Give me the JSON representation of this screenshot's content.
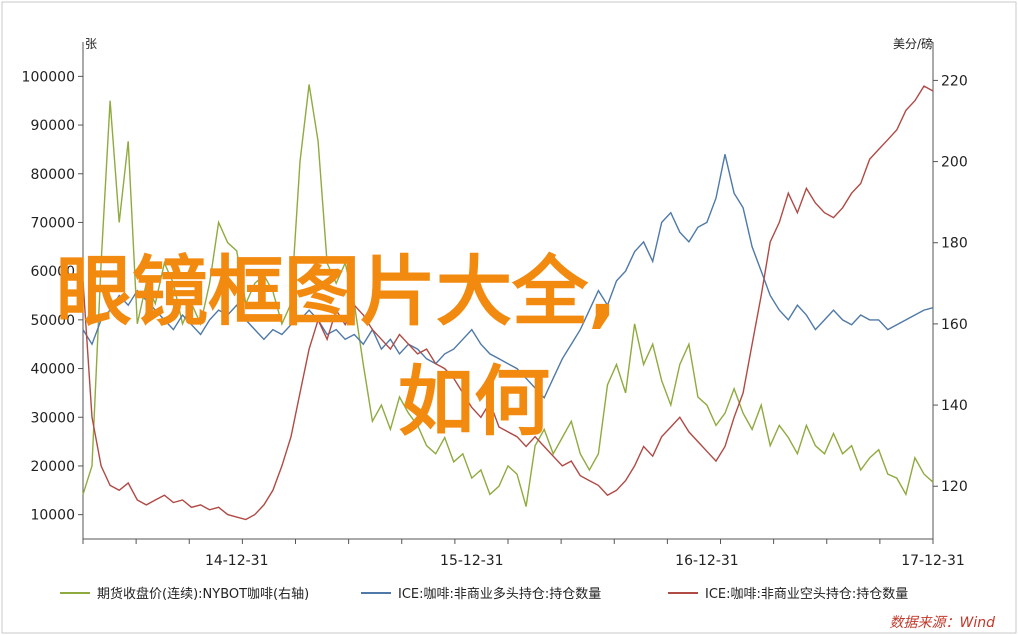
{
  "chart_data": {
    "type": "line",
    "left_axis": {
      "unit": "张",
      "ticks": [
        10000,
        20000,
        30000,
        40000,
        50000,
        60000,
        70000,
        80000,
        90000,
        100000
      ],
      "ylim": [
        5000,
        105000
      ]
    },
    "right_axis": {
      "unit": "美分/磅",
      "ticks": [
        120,
        140,
        160,
        180,
        200,
        220
      ],
      "ylim": [
        107,
        227
      ]
    },
    "x_ticks": [
      "14-12-31",
      "15-12-31",
      "16-12-31",
      "17-12-31"
    ],
    "series": [
      {
        "name": "期货收盘价(连续):NYBOT咖啡(右轴)",
        "axis": "right",
        "color": "#8faa3e",
        "points": [
          [
            0,
            118
          ],
          [
            1,
            125
          ],
          [
            2,
            175
          ],
          [
            3,
            215
          ],
          [
            4,
            185
          ],
          [
            5,
            205
          ],
          [
            6,
            160
          ],
          [
            7,
            170
          ],
          [
            8,
            165
          ],
          [
            9,
            175
          ],
          [
            10,
            170
          ],
          [
            11,
            160
          ],
          [
            12,
            165
          ],
          [
            13,
            160
          ],
          [
            14,
            170
          ],
          [
            15,
            185
          ],
          [
            16,
            180
          ],
          [
            17,
            178
          ],
          [
            18,
            165
          ],
          [
            19,
            170
          ],
          [
            20,
            172
          ],
          [
            21,
            168
          ],
          [
            22,
            160
          ],
          [
            23,
            165
          ],
          [
            24,
            200
          ],
          [
            25,
            219
          ],
          [
            26,
            205
          ],
          [
            27,
            175
          ],
          [
            28,
            170
          ],
          [
            29,
            175
          ],
          [
            30,
            165
          ],
          [
            31,
            150
          ],
          [
            32,
            136
          ],
          [
            33,
            140
          ],
          [
            34,
            134
          ],
          [
            35,
            142
          ],
          [
            36,
            138
          ],
          [
            37,
            135
          ],
          [
            38,
            130
          ],
          [
            39,
            128
          ],
          [
            40,
            132
          ],
          [
            41,
            126
          ],
          [
            42,
            128
          ],
          [
            43,
            122
          ],
          [
            44,
            124
          ],
          [
            45,
            118
          ],
          [
            46,
            120
          ],
          [
            47,
            125
          ],
          [
            48,
            123
          ],
          [
            49,
            115
          ],
          [
            50,
            130
          ],
          [
            51,
            134
          ],
          [
            52,
            128
          ],
          [
            53,
            132
          ],
          [
            54,
            136
          ],
          [
            55,
            128
          ],
          [
            56,
            124
          ],
          [
            57,
            128
          ],
          [
            58,
            145
          ],
          [
            59,
            150
          ],
          [
            60,
            143
          ],
          [
            61,
            160
          ],
          [
            62,
            150
          ],
          [
            63,
            155
          ],
          [
            64,
            146
          ],
          [
            65,
            140
          ],
          [
            66,
            150
          ],
          [
            67,
            155
          ],
          [
            68,
            142
          ],
          [
            69,
            140
          ],
          [
            70,
            135
          ],
          [
            71,
            138
          ],
          [
            72,
            144
          ],
          [
            73,
            138
          ],
          [
            74,
            134
          ],
          [
            75,
            140
          ],
          [
            76,
            130
          ],
          [
            77,
            135
          ],
          [
            78,
            132
          ],
          [
            79,
            128
          ],
          [
            80,
            135
          ],
          [
            81,
            130
          ],
          [
            82,
            128
          ],
          [
            83,
            133
          ],
          [
            84,
            128
          ],
          [
            85,
            130
          ],
          [
            86,
            124
          ],
          [
            87,
            127
          ],
          [
            88,
            129
          ],
          [
            89,
            123
          ],
          [
            90,
            122
          ],
          [
            91,
            118
          ],
          [
            92,
            127
          ],
          [
            93,
            123
          ],
          [
            94,
            121
          ]
        ]
      },
      {
        "name": "ICE:咖啡:非商业多头持仓:持仓数量",
        "axis": "left",
        "color": "#4f79a8",
        "points": [
          [
            0,
            48000
          ],
          [
            1,
            45000
          ],
          [
            2,
            50000
          ],
          [
            3,
            52000
          ],
          [
            4,
            55000
          ],
          [
            5,
            53000
          ],
          [
            6,
            56000
          ],
          [
            7,
            54000
          ],
          [
            8,
            52000
          ],
          [
            9,
            50000
          ],
          [
            10,
            48000
          ],
          [
            11,
            51000
          ],
          [
            12,
            49000
          ],
          [
            13,
            47000
          ],
          [
            14,
            50000
          ],
          [
            15,
            52000
          ],
          [
            16,
            51000
          ],
          [
            17,
            53000
          ],
          [
            18,
            50000
          ],
          [
            19,
            48000
          ],
          [
            20,
            46000
          ],
          [
            21,
            48000
          ],
          [
            22,
            47000
          ],
          [
            23,
            49000
          ],
          [
            24,
            50000
          ],
          [
            25,
            52000
          ],
          [
            26,
            50000
          ],
          [
            27,
            47000
          ],
          [
            28,
            48000
          ],
          [
            29,
            46000
          ],
          [
            30,
            47000
          ],
          [
            31,
            45000
          ],
          [
            32,
            48000
          ],
          [
            33,
            44000
          ],
          [
            34,
            46000
          ],
          [
            35,
            43000
          ],
          [
            36,
            45000
          ],
          [
            37,
            44000
          ],
          [
            38,
            42000
          ],
          [
            39,
            41000
          ],
          [
            40,
            43000
          ],
          [
            41,
            44000
          ],
          [
            42,
            46000
          ],
          [
            43,
            48000
          ],
          [
            44,
            45000
          ],
          [
            45,
            43000
          ],
          [
            46,
            42000
          ],
          [
            47,
            41000
          ],
          [
            48,
            40000
          ],
          [
            49,
            38000
          ],
          [
            50,
            36000
          ],
          [
            51,
            34000
          ],
          [
            52,
            38000
          ],
          [
            53,
            42000
          ],
          [
            54,
            45000
          ],
          [
            55,
            48000
          ],
          [
            56,
            52000
          ],
          [
            57,
            56000
          ],
          [
            58,
            53000
          ],
          [
            59,
            58000
          ],
          [
            60,
            60000
          ],
          [
            61,
            64000
          ],
          [
            62,
            66000
          ],
          [
            63,
            62000
          ],
          [
            64,
            70000
          ],
          [
            65,
            72000
          ],
          [
            66,
            68000
          ],
          [
            67,
            66000
          ],
          [
            68,
            69000
          ],
          [
            69,
            70000
          ],
          [
            70,
            75000
          ],
          [
            71,
            84000
          ],
          [
            72,
            76000
          ],
          [
            73,
            73000
          ],
          [
            74,
            65000
          ],
          [
            75,
            60000
          ],
          [
            76,
            55000
          ],
          [
            77,
            52000
          ],
          [
            78,
            50000
          ],
          [
            79,
            53000
          ],
          [
            80,
            51000
          ],
          [
            81,
            48000
          ],
          [
            82,
            50000
          ],
          [
            83,
            52000
          ],
          [
            84,
            50000
          ],
          [
            85,
            49000
          ],
          [
            86,
            51000
          ],
          [
            87,
            50000
          ],
          [
            88,
            50000
          ],
          [
            89,
            48000
          ],
          [
            90,
            49000
          ],
          [
            91,
            50000
          ],
          [
            92,
            51000
          ],
          [
            93,
            52000
          ],
          [
            94,
            52500
          ]
        ]
      },
      {
        "name": "ICE:咖啡:非商业空头持仓:持仓数量",
        "axis": "left",
        "color": "#b04a45",
        "points": [
          [
            0,
            58000
          ],
          [
            1,
            30000
          ],
          [
            2,
            20000
          ],
          [
            3,
            16000
          ],
          [
            4,
            15000
          ],
          [
            5,
            16500
          ],
          [
            6,
            13000
          ],
          [
            7,
            12000
          ],
          [
            8,
            13000
          ],
          [
            9,
            14000
          ],
          [
            10,
            12500
          ],
          [
            11,
            13000
          ],
          [
            12,
            11500
          ],
          [
            13,
            12000
          ],
          [
            14,
            11000
          ],
          [
            15,
            11500
          ],
          [
            16,
            10000
          ],
          [
            17,
            9500
          ],
          [
            18,
            9000
          ],
          [
            19,
            10000
          ],
          [
            20,
            12000
          ],
          [
            21,
            15000
          ],
          [
            22,
            20000
          ],
          [
            23,
            26000
          ],
          [
            24,
            35000
          ],
          [
            25,
            44000
          ],
          [
            26,
            50000
          ],
          [
            27,
            46000
          ],
          [
            28,
            52000
          ],
          [
            29,
            49000
          ],
          [
            30,
            53000
          ],
          [
            31,
            51000
          ],
          [
            32,
            48000
          ],
          [
            33,
            46000
          ],
          [
            34,
            44000
          ],
          [
            35,
            47000
          ],
          [
            36,
            45000
          ],
          [
            37,
            43000
          ],
          [
            38,
            44000
          ],
          [
            39,
            41000
          ],
          [
            40,
            40000
          ],
          [
            41,
            38000
          ],
          [
            42,
            35000
          ],
          [
            43,
            32000
          ],
          [
            44,
            30000
          ],
          [
            45,
            33000
          ],
          [
            46,
            28000
          ],
          [
            47,
            27000
          ],
          [
            48,
            26000
          ],
          [
            49,
            24000
          ],
          [
            50,
            26000
          ],
          [
            51,
            24000
          ],
          [
            52,
            22000
          ],
          [
            53,
            20000
          ],
          [
            54,
            21000
          ],
          [
            55,
            18000
          ],
          [
            56,
            17000
          ],
          [
            57,
            16000
          ],
          [
            58,
            14000
          ],
          [
            59,
            15000
          ],
          [
            60,
            17000
          ],
          [
            61,
            20000
          ],
          [
            62,
            24000
          ],
          [
            63,
            22000
          ],
          [
            64,
            26000
          ],
          [
            65,
            28000
          ],
          [
            66,
            30000
          ],
          [
            67,
            27000
          ],
          [
            68,
            25000
          ],
          [
            69,
            23000
          ],
          [
            70,
            21000
          ],
          [
            71,
            24000
          ],
          [
            72,
            30000
          ],
          [
            73,
            35000
          ],
          [
            74,
            45000
          ],
          [
            75,
            55000
          ],
          [
            76,
            66000
          ],
          [
            77,
            70000
          ],
          [
            78,
            76000
          ],
          [
            79,
            72000
          ],
          [
            80,
            77000
          ],
          [
            81,
            74000
          ],
          [
            82,
            72000
          ],
          [
            83,
            71000
          ],
          [
            84,
            73000
          ],
          [
            85,
            76000
          ],
          [
            86,
            78000
          ],
          [
            87,
            83000
          ],
          [
            88,
            85000
          ],
          [
            89,
            87000
          ],
          [
            90,
            89000
          ],
          [
            91,
            93000
          ],
          [
            92,
            95000
          ],
          [
            93,
            98000
          ],
          [
            94,
            97000
          ]
        ]
      }
    ]
  },
  "overlay": {
    "line1": "眼镜框图片大全,",
    "line2": "如何"
  },
  "source": "数据来源：Wind",
  "colors": {
    "axis": "#555555",
    "frame": "#c9c9c9",
    "overlay": "#f28a10"
  }
}
